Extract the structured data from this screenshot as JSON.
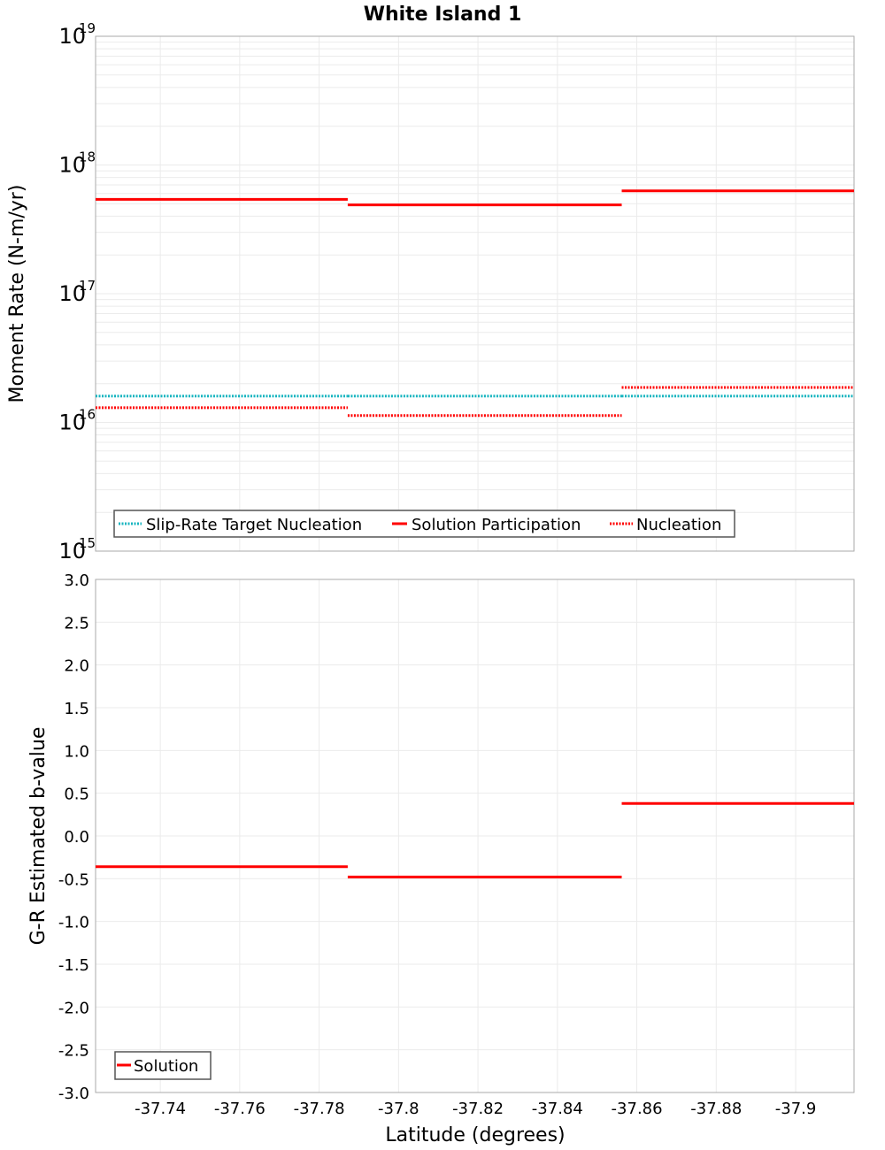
{
  "chart_data": [
    {
      "type": "line",
      "subtype": "step-segments",
      "title": "White Island 1",
      "xlabel": "Latitude (degrees)",
      "ylabel": "Moment Rate (N-m/yr)",
      "yscale": "log",
      "ylim": [
        1000000000000000.0,
        1e+19
      ],
      "xlim": [
        -37.7237,
        -37.9147
      ],
      "x_inverted": true,
      "grid": true,
      "y_ticks": [
        {
          "base": "10",
          "exp": "15",
          "value": 1000000000000000.0
        },
        {
          "base": "10",
          "exp": "16",
          "value": 1e+16
        },
        {
          "base": "10",
          "exp": "17",
          "value": 1e+17
        },
        {
          "base": "10",
          "exp": "18",
          "value": 1e+18
        },
        {
          "base": "10",
          "exp": "19",
          "value": 1e+19
        }
      ],
      "legend_position": "lower-left",
      "series": [
        {
          "name": "Slip-Rate Target Nucleation",
          "color": "#17b5c0",
          "style": "dotted",
          "segments": [
            {
              "x0": -37.7237,
              "x1": -37.7872,
              "y": 1.6e+16
            },
            {
              "x0": -37.7872,
              "x1": -37.8562,
              "y": 1.6e+16
            },
            {
              "x0": -37.8562,
              "x1": -37.9147,
              "y": 1.6e+16
            }
          ]
        },
        {
          "name": "Solution Participation",
          "color": "#ff0000",
          "style": "solid",
          "segments": [
            {
              "x0": -37.7237,
              "x1": -37.7872,
              "y": 5.4e+17
            },
            {
              "x0": -37.7872,
              "x1": -37.8562,
              "y": 4.9e+17
            },
            {
              "x0": -37.8562,
              "x1": -37.9147,
              "y": 6.3e+17
            }
          ]
        },
        {
          "name": "Nucleation",
          "color": "#ff0000",
          "style": "dotted",
          "segments": [
            {
              "x0": -37.7237,
              "x1": -37.7872,
              "y": 1.3e+16
            },
            {
              "x0": -37.7872,
              "x1": -37.8562,
              "y": 1.13e+16
            },
            {
              "x0": -37.8562,
              "x1": -37.9147,
              "y": 1.87e+16
            }
          ]
        }
      ]
    },
    {
      "type": "line",
      "subtype": "step-segments",
      "title": "",
      "xlabel": "Latitude (degrees)",
      "ylabel": "G-R Estimated b-value",
      "yscale": "linear",
      "ylim": [
        -3.0,
        3.0
      ],
      "xlim": [
        -37.7237,
        -37.9147
      ],
      "x_inverted": true,
      "grid": true,
      "y_ticks": [
        "3.0",
        "2.5",
        "2.0",
        "1.5",
        "1.0",
        "0.5",
        "0.0",
        "-0.5",
        "-1.0",
        "-1.5",
        "-2.0",
        "-2.5",
        "-3.0"
      ],
      "legend_position": "lower-left",
      "series": [
        {
          "name": "Solution",
          "color": "#ff0000",
          "style": "solid",
          "segments": [
            {
              "x0": -37.7237,
              "x1": -37.7872,
              "y": -0.36
            },
            {
              "x0": -37.7872,
              "x1": -37.8562,
              "y": -0.48
            },
            {
              "x0": -37.8562,
              "x1": -37.9147,
              "y": 0.38
            }
          ]
        }
      ]
    }
  ],
  "x_ticks": [
    "-37.74",
    "-37.76",
    "-37.78",
    "-37.8",
    "-37.82",
    "-37.84",
    "-37.86",
    "-37.88",
    "-37.9"
  ],
  "labels": {
    "title": "White Island 1",
    "top_ylabel": "Moment Rate (N-m/yr)",
    "bottom_ylabel": "G-R Estimated b-value",
    "xlabel": "Latitude (degrees)",
    "legend_top": [
      "Slip-Rate Target Nucleation",
      "Solution Participation",
      "Nucleation"
    ],
    "legend_bottom": [
      "Solution"
    ]
  }
}
